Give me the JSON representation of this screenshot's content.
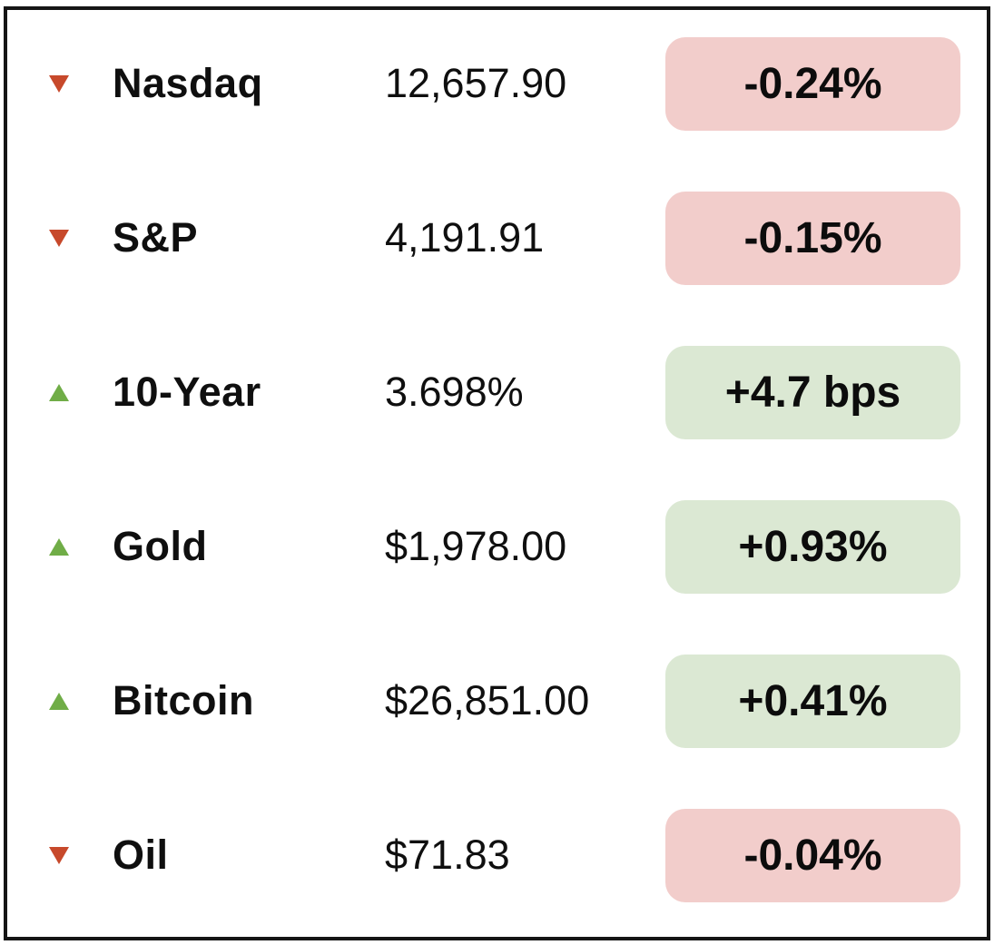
{
  "colors": {
    "up_triangle": "#70AD47",
    "down_triangle": "#C7492B",
    "positive_badge_bg": "#DBE8D3",
    "negative_badge_bg": "#F2CDCB",
    "panel_border": "#151515",
    "text": "#0F0F0F"
  },
  "chart_data": {
    "type": "table",
    "columns": [
      "instrument",
      "last_value",
      "change"
    ],
    "legend_position": "none",
    "grid": false,
    "rows": [
      {
        "instrument": "Nasdaq",
        "last": "12,657.90",
        "change": "-0.24%",
        "direction": "down",
        "sentiment": "negative"
      },
      {
        "instrument": "S&P",
        "last": "4,191.91",
        "change": "-0.15%",
        "direction": "down",
        "sentiment": "negative"
      },
      {
        "instrument": "10-Year",
        "last": "3.698%",
        "change": "+4.7 bps",
        "direction": "up",
        "sentiment": "positive"
      },
      {
        "instrument": "Gold",
        "last": "$1,978.00",
        "change": "+0.93%",
        "direction": "up",
        "sentiment": "positive"
      },
      {
        "instrument": "Bitcoin",
        "last": "$26,851.00",
        "change": "+0.41%",
        "direction": "up",
        "sentiment": "positive"
      },
      {
        "instrument": "Oil",
        "last": "$71.83",
        "change": "-0.04%",
        "direction": "down",
        "sentiment": "negative"
      }
    ]
  }
}
